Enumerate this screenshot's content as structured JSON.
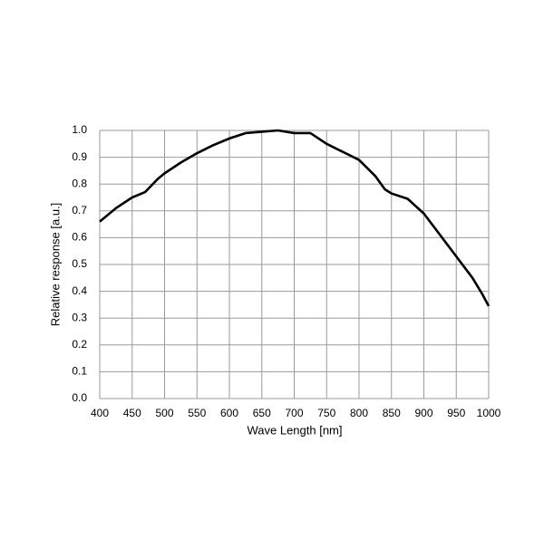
{
  "chart_data": {
    "type": "line",
    "x_label": "Wave Length [nm]",
    "y_label": "Relative response [a.u.]",
    "x": [
      400,
      425,
      450,
      470,
      490,
      500,
      525,
      550,
      575,
      600,
      625,
      650,
      675,
      700,
      725,
      750,
      775,
      800,
      825,
      840,
      850,
      875,
      900,
      925,
      950,
      975,
      990,
      1000
    ],
    "series": [
      {
        "color": "#000000",
        "values": [
          0.66,
          0.71,
          0.75,
          0.77,
          0.82,
          0.84,
          0.88,
          0.915,
          0.945,
          0.97,
          0.99,
          0.995,
          1.0,
          0.99,
          0.99,
          0.95,
          0.92,
          0.89,
          0.83,
          0.78,
          0.765,
          0.745,
          0.69,
          0.61,
          0.53,
          0.45,
          0.39,
          0.345
        ]
      }
    ],
    "xlim": [
      400,
      1000
    ],
    "ylim": [
      0,
      1
    ],
    "xticks": [
      400,
      450,
      500,
      550,
      600,
      650,
      700,
      750,
      800,
      850,
      900,
      950,
      1000
    ],
    "yticks": [
      {
        "value": 0,
        "label": "0.0"
      },
      0.1,
      0.2,
      0.3,
      0.4,
      0.5,
      0.6,
      0.7,
      0.8,
      0.9,
      {
        "value": 1,
        "label": "1.0"
      }
    ],
    "grid": true
  }
}
